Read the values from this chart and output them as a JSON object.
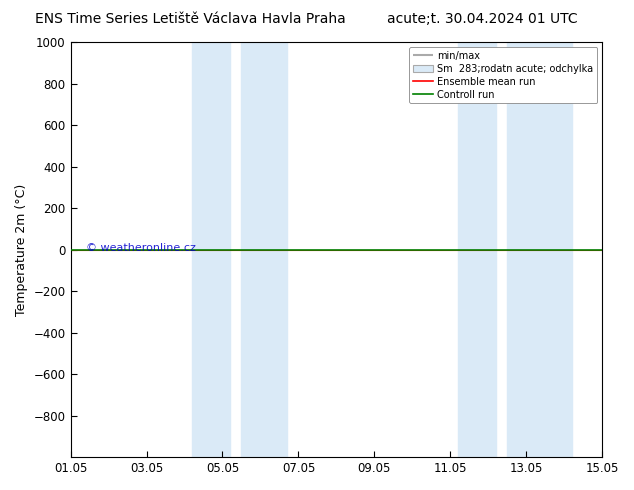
{
  "title_left": "ENS Time Series Letiště Václava Havla Praha",
  "title_right": "acute;t. 30.04.2024 01 UTC",
  "ylabel": "Temperature 2m (°C)",
  "ylim_top": -1000,
  "ylim_bottom": 1000,
  "yticks": [
    -800,
    -600,
    -400,
    -200,
    0,
    200,
    400,
    600,
    800,
    1000
  ],
  "xtick_labels": [
    "01.05",
    "03.05",
    "05.05",
    "07.05",
    "09.05",
    "11.05",
    "13.05",
    "15.05"
  ],
  "xtick_positions": [
    0,
    2,
    4,
    6,
    8,
    10,
    12,
    14
  ],
  "shaded_bands": [
    [
      3.2,
      4.2
    ],
    [
      4.5,
      5.7
    ],
    [
      10.2,
      11.2
    ],
    [
      11.5,
      13.2
    ]
  ],
  "shade_color": "#daeaf7",
  "green_line_y": 0,
  "green_color": "#008000",
  "red_color": "#ff0000",
  "watermark": "© weatheronline.cz",
  "watermark_color": "#0000cc",
  "legend_labels": [
    "min/max",
    "Sm  283;rodatn acute; odchylka",
    "Ensemble mean run",
    "Controll run"
  ],
  "background_color": "#ffffff",
  "title_fontsize": 10,
  "tick_fontsize": 8.5,
  "ylabel_fontsize": 9
}
